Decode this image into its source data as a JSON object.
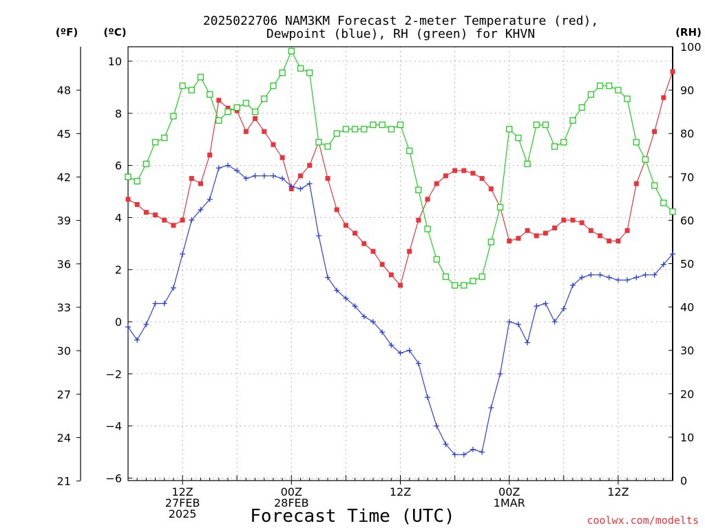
{
  "chart_data": {
    "type": "line",
    "title_lines": [
      "2025022706 NAM3KM Forecast 2-meter Temperature (red),",
      "Dewpoint (blue), RH (green) for KHVN"
    ],
    "xlabel": "Forecast Time (UTC)",
    "watermark": "coolwx.com/modelts",
    "unit_labels": {
      "fahrenheit": "(ºF)",
      "celsius": "(ºC)",
      "rh": "(RH)"
    },
    "x_range_hours": [
      0,
      60
    ],
    "x_ticks": [
      {
        "hour": 6,
        "lines": [
          "12Z",
          "27FEB",
          "2025"
        ]
      },
      {
        "hour": 18,
        "lines": [
          "00Z",
          "28FEB"
        ]
      },
      {
        "hour": 30,
        "lines": [
          "12Z"
        ]
      },
      {
        "hour": 42,
        "lines": [
          "00Z",
          "1MAR"
        ]
      },
      {
        "hour": 54,
        "lines": [
          "12Z"
        ]
      }
    ],
    "y_celsius": {
      "range": [
        -6.2,
        10.5
      ],
      "ticks": [
        10,
        8,
        6,
        4,
        2,
        0,
        -2,
        -4,
        -6
      ],
      "tick_labels": [
        "10",
        "8",
        "6",
        "4",
        "2",
        "0",
        "−2",
        "−4",
        "−6"
      ]
    },
    "y_fahrenheit": {
      "ticks": [
        48,
        45,
        42,
        39,
        36,
        33,
        30,
        27,
        24,
        21
      ],
      "tick_labels": [
        "48",
        "45",
        "42",
        "39",
        "36",
        "33",
        "30",
        "27",
        "24",
        "21"
      ]
    },
    "y_rh": {
      "range": [
        0,
        100
      ],
      "ticks": [
        100,
        90,
        80,
        70,
        60,
        50,
        40,
        30,
        20,
        10,
        0
      ],
      "tick_labels": [
        "100",
        "90",
        "80",
        "70",
        "60",
        "50",
        "40",
        "30",
        "20",
        "10",
        "0"
      ]
    },
    "grid": true,
    "series": [
      {
        "name": "Temperature",
        "axis": "celsius",
        "color": "#e8343a",
        "marker": "filled-square",
        "x": [
          0,
          1,
          2,
          3,
          4,
          5,
          6,
          7,
          8,
          9,
          10,
          11,
          12,
          13,
          14,
          15,
          16,
          17,
          18,
          19,
          20,
          21,
          22,
          23,
          24,
          25,
          26,
          27,
          28,
          29,
          30,
          31,
          32,
          33,
          34,
          35,
          36,
          37,
          38,
          39,
          40,
          41,
          42,
          43,
          44,
          45,
          46,
          47,
          48,
          49,
          50,
          51,
          52,
          53,
          54,
          55,
          56,
          57,
          58,
          59,
          60
        ],
        "values": [
          4.7,
          4.5,
          4.2,
          4.1,
          3.9,
          3.7,
          3.9,
          5.5,
          5.3,
          6.4,
          8.5,
          8.2,
          8.1,
          7.3,
          7.8,
          7.3,
          6.8,
          6.3,
          5.1,
          5.6,
          6.0,
          6.9,
          5.5,
          4.3,
          3.7,
          3.4,
          3.0,
          2.7,
          2.2,
          1.8,
          1.4,
          2.7,
          3.9,
          4.7,
          5.3,
          5.6,
          5.8,
          5.8,
          5.7,
          5.5,
          5.1,
          4.4,
          3.1,
          3.2,
          3.5,
          3.3,
          3.4,
          3.6,
          3.9,
          3.9,
          3.8,
          3.5,
          3.3,
          3.1,
          3.1,
          3.5,
          5.3,
          6.2,
          7.3,
          8.6,
          9.6
        ]
      },
      {
        "name": "Dewpoint",
        "axis": "celsius",
        "color": "#2b3fd9",
        "marker": "plus",
        "x": [
          0,
          1,
          2,
          3,
          4,
          5,
          6,
          7,
          8,
          9,
          10,
          11,
          12,
          13,
          14,
          15,
          16,
          17,
          18,
          19,
          20,
          21,
          22,
          23,
          24,
          25,
          26,
          27,
          28,
          29,
          30,
          31,
          32,
          33,
          34,
          35,
          36,
          37,
          38,
          39,
          40,
          41,
          42,
          43,
          44,
          45,
          46,
          47,
          48,
          49,
          50,
          51,
          52,
          53,
          54,
          55,
          56,
          57,
          58,
          59,
          60
        ],
        "values": [
          -0.2,
          -0.7,
          -0.1,
          0.7,
          0.7,
          1.3,
          2.6,
          3.9,
          4.3,
          4.7,
          5.9,
          6.0,
          5.8,
          5.5,
          5.6,
          5.6,
          5.6,
          5.5,
          5.2,
          5.1,
          5.3,
          3.3,
          1.7,
          1.2,
          0.9,
          0.6,
          0.2,
          0.0,
          -0.4,
          -0.9,
          -1.2,
          -1.1,
          -1.6,
          -2.9,
          -4.0,
          -4.7,
          -5.1,
          -5.1,
          -4.9,
          -5.0,
          -3.3,
          -2.0,
          0.0,
          -0.1,
          -0.8,
          0.6,
          0.7,
          0.0,
          0.5,
          1.4,
          1.7,
          1.8,
          1.8,
          1.7,
          1.6,
          1.6,
          1.7,
          1.8,
          1.8,
          2.2,
          2.6
        ]
      },
      {
        "name": "RH",
        "axis": "rh",
        "color": "#1fce1f",
        "marker": "open-square",
        "x": [
          0,
          1,
          2,
          3,
          4,
          5,
          6,
          7,
          8,
          9,
          10,
          11,
          12,
          13,
          14,
          15,
          16,
          17,
          18,
          19,
          20,
          21,
          22,
          23,
          24,
          25,
          26,
          27,
          28,
          29,
          30,
          31,
          32,
          33,
          34,
          35,
          36,
          37,
          38,
          39,
          40,
          41,
          42,
          43,
          44,
          45,
          46,
          47,
          48,
          49,
          50,
          51,
          52,
          53,
          54,
          55,
          56,
          57,
          58,
          59,
          60
        ],
        "values": [
          70,
          69,
          73,
          78,
          79,
          84,
          91,
          90,
          93,
          89,
          83,
          85,
          86,
          87,
          85,
          88,
          91,
          94,
          99,
          95,
          94,
          78,
          77,
          80,
          81,
          81,
          81,
          82,
          82,
          81,
          82,
          76,
          67,
          58,
          51,
          47,
          45,
          45,
          46,
          47,
          55,
          63,
          81,
          79,
          73,
          82,
          82,
          77,
          78,
          83,
          86,
          89,
          91,
          91,
          90,
          88,
          78,
          74,
          68,
          64,
          62
        ]
      }
    ]
  }
}
